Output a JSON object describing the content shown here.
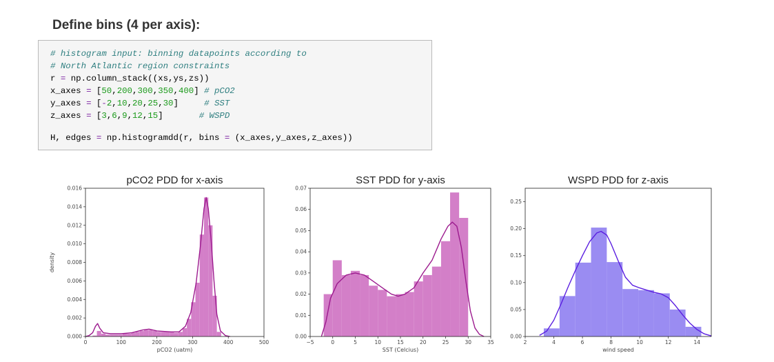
{
  "heading": "Define bins (4 per axis):",
  "code": {
    "lines": [
      [
        {
          "t": "# histogram input: binning datapoints according to",
          "c": "comment"
        }
      ],
      [
        {
          "t": "# North Atlantic region constraints",
          "c": "comment"
        }
      ],
      [
        {
          "t": "r "
        },
        {
          "t": "=",
          "c": "op"
        },
        {
          "t": " np.column_stack((xs,ys,zs))"
        }
      ],
      [
        {
          "t": "x_axes "
        },
        {
          "t": "=",
          "c": "op"
        },
        {
          "t": " ["
        },
        {
          "t": "50",
          "c": "num"
        },
        {
          "t": ","
        },
        {
          "t": "200",
          "c": "num"
        },
        {
          "t": ","
        },
        {
          "t": "300",
          "c": "num"
        },
        {
          "t": ","
        },
        {
          "t": "350",
          "c": "num"
        },
        {
          "t": ","
        },
        {
          "t": "400",
          "c": "num"
        },
        {
          "t": "] "
        },
        {
          "t": "# pCO2",
          "c": "comment"
        }
      ],
      [
        {
          "t": "y_axes "
        },
        {
          "t": "=",
          "c": "op"
        },
        {
          "t": " ["
        },
        {
          "t": "-",
          "c": "op"
        },
        {
          "t": "2",
          "c": "num"
        },
        {
          "t": ","
        },
        {
          "t": "10",
          "c": "num"
        },
        {
          "t": ","
        },
        {
          "t": "20",
          "c": "num"
        },
        {
          "t": ","
        },
        {
          "t": "25",
          "c": "num"
        },
        {
          "t": ","
        },
        {
          "t": "30",
          "c": "num"
        },
        {
          "t": "]     "
        },
        {
          "t": "# SST",
          "c": "comment"
        }
      ],
      [
        {
          "t": "z_axes "
        },
        {
          "t": "=",
          "c": "op"
        },
        {
          "t": " ["
        },
        {
          "t": "3",
          "c": "num"
        },
        {
          "t": ","
        },
        {
          "t": "6",
          "c": "num"
        },
        {
          "t": ","
        },
        {
          "t": "9",
          "c": "num"
        },
        {
          "t": ","
        },
        {
          "t": "12",
          "c": "num"
        },
        {
          "t": ","
        },
        {
          "t": "15",
          "c": "num"
        },
        {
          "t": "]       "
        },
        {
          "t": "# WSPD",
          "c": "comment"
        }
      ],
      [],
      [
        {
          "t": "H, edges "
        },
        {
          "t": "=",
          "c": "op"
        },
        {
          "t": " np.histogramdd(r, bins "
        },
        {
          "t": "=",
          "c": "op"
        },
        {
          "t": " (x_axes,y_axes,z_axes))"
        }
      ]
    ]
  },
  "chart_data": [
    {
      "type": "bar",
      "title": "pCO2 PDD for x-axis",
      "xlabel": "pCO2 (uatm)",
      "ylabel": "density",
      "xlim": [
        0,
        500
      ],
      "ylim": [
        0,
        0.016
      ],
      "xticks": [
        "0",
        "100",
        "200",
        "300",
        "400",
        "500"
      ],
      "yticks": [
        "0.000",
        "0.002",
        "0.004",
        "0.006",
        "0.008",
        "0.010",
        "0.012",
        "0.014",
        "0.016"
      ],
      "color": "#d37fc8",
      "kde_color": "#9c1a8e",
      "bins": [
        {
          "x0": 20,
          "x1": 32,
          "v": 0.0001
        },
        {
          "x0": 32,
          "x1": 44,
          "v": 0.0006
        },
        {
          "x0": 44,
          "x1": 56,
          "v": 0.0003
        },
        {
          "x0": 56,
          "x1": 68,
          "v": 0.0002
        },
        {
          "x0": 68,
          "x1": 80,
          "v": 0.0002
        },
        {
          "x0": 80,
          "x1": 92,
          "v": 0.0002
        },
        {
          "x0": 92,
          "x1": 104,
          "v": 0.0002
        },
        {
          "x0": 104,
          "x1": 116,
          "v": 0.0003
        },
        {
          "x0": 116,
          "x1": 128,
          "v": 0.0003
        },
        {
          "x0": 128,
          "x1": 140,
          "v": 0.0004
        },
        {
          "x0": 140,
          "x1": 152,
          "v": 0.0005
        },
        {
          "x0": 152,
          "x1": 164,
          "v": 0.0006
        },
        {
          "x0": 164,
          "x1": 176,
          "v": 0.0007
        },
        {
          "x0": 176,
          "x1": 188,
          "v": 0.0007
        },
        {
          "x0": 188,
          "x1": 200,
          "v": 0.0006
        },
        {
          "x0": 200,
          "x1": 212,
          "v": 0.0005
        },
        {
          "x0": 212,
          "x1": 224,
          "v": 0.0005
        },
        {
          "x0": 224,
          "x1": 236,
          "v": 0.0005
        },
        {
          "x0": 236,
          "x1": 248,
          "v": 0.0005
        },
        {
          "x0": 248,
          "x1": 260,
          "v": 0.0004
        },
        {
          "x0": 260,
          "x1": 272,
          "v": 0.0005
        },
        {
          "x0": 272,
          "x1": 284,
          "v": 0.0009
        },
        {
          "x0": 284,
          "x1": 296,
          "v": 0.0019
        },
        {
          "x0": 296,
          "x1": 308,
          "v": 0.0037
        },
        {
          "x0": 308,
          "x1": 320,
          "v": 0.0058
        },
        {
          "x0": 320,
          "x1": 332,
          "v": 0.011
        },
        {
          "x0": 332,
          "x1": 344,
          "v": 0.015
        },
        {
          "x0": 344,
          "x1": 356,
          "v": 0.012
        },
        {
          "x0": 356,
          "x1": 368,
          "v": 0.0044
        },
        {
          "x0": 368,
          "x1": 380,
          "v": 0.0005
        }
      ],
      "kde": [
        [
          0,
          0
        ],
        [
          10,
          0.0001
        ],
        [
          20,
          0.0004
        ],
        [
          28,
          0.0011
        ],
        [
          34,
          0.0014
        ],
        [
          40,
          0.0009
        ],
        [
          50,
          0.0004
        ],
        [
          70,
          0.0003
        ],
        [
          100,
          0.0003
        ],
        [
          130,
          0.0004
        ],
        [
          160,
          0.0007
        ],
        [
          178,
          0.0008
        ],
        [
          200,
          0.0006
        ],
        [
          240,
          0.0005
        ],
        [
          262,
          0.0005
        ],
        [
          280,
          0.0011
        ],
        [
          295,
          0.0026
        ],
        [
          310,
          0.0058
        ],
        [
          322,
          0.0098
        ],
        [
          332,
          0.0138
        ],
        [
          338,
          0.015
        ],
        [
          344,
          0.0138
        ],
        [
          352,
          0.0104
        ],
        [
          360,
          0.006
        ],
        [
          368,
          0.0024
        ],
        [
          378,
          0.0006
        ],
        [
          392,
          0.0001
        ],
        [
          405,
          0
        ]
      ]
    },
    {
      "type": "bar",
      "title": "SST PDD for y-axis",
      "xlabel": "SST (Celcius)",
      "ylabel": "",
      "xlim": [
        -5,
        35
      ],
      "ylim": [
        0,
        0.07
      ],
      "xticks": [
        "−5",
        "0",
        "5",
        "10",
        "15",
        "20",
        "25",
        "30",
        "35"
      ],
      "yticks": [
        "0.00",
        "0.01",
        "0.02",
        "0.03",
        "0.04",
        "0.05",
        "0.06",
        "0.07"
      ],
      "color": "#d37fc8",
      "kde_color": "#9c1a8e",
      "bins": [
        {
          "x0": -2,
          "x1": 0,
          "v": 0.02
        },
        {
          "x0": 0,
          "x1": 2,
          "v": 0.036
        },
        {
          "x0": 2,
          "x1": 4,
          "v": 0.029
        },
        {
          "x0": 4,
          "x1": 6,
          "v": 0.031
        },
        {
          "x0": 6,
          "x1": 8,
          "v": 0.029
        },
        {
          "x0": 8,
          "x1": 10,
          "v": 0.024
        },
        {
          "x0": 10,
          "x1": 12,
          "v": 0.022
        },
        {
          "x0": 12,
          "x1": 14,
          "v": 0.019
        },
        {
          "x0": 14,
          "x1": 16,
          "v": 0.02
        },
        {
          "x0": 16,
          "x1": 18,
          "v": 0.021
        },
        {
          "x0": 18,
          "x1": 20,
          "v": 0.026
        },
        {
          "x0": 20,
          "x1": 22,
          "v": 0.029
        },
        {
          "x0": 22,
          "x1": 24,
          "v": 0.033
        },
        {
          "x0": 24,
          "x1": 26,
          "v": 0.045
        },
        {
          "x0": 26,
          "x1": 28,
          "v": 0.068
        },
        {
          "x0": 28,
          "x1": 30,
          "v": 0.056
        }
      ],
      "kde": [
        [
          -2.5,
          0
        ],
        [
          -1.5,
          0.007
        ],
        [
          -0.5,
          0.018
        ],
        [
          1,
          0.025
        ],
        [
          3,
          0.029
        ],
        [
          5,
          0.03
        ],
        [
          7,
          0.029
        ],
        [
          9,
          0.026
        ],
        [
          11,
          0.023
        ],
        [
          13,
          0.02
        ],
        [
          14.5,
          0.019
        ],
        [
          16,
          0.02
        ],
        [
          18,
          0.023
        ],
        [
          20,
          0.03
        ],
        [
          22,
          0.036
        ],
        [
          24,
          0.046
        ],
        [
          25.5,
          0.052
        ],
        [
          26.5,
          0.054
        ],
        [
          27.5,
          0.052
        ],
        [
          28.5,
          0.042
        ],
        [
          29.5,
          0.026
        ],
        [
          30.5,
          0.012
        ],
        [
          31.5,
          0.004
        ],
        [
          32.5,
          0.001
        ],
        [
          33.5,
          0
        ]
      ]
    },
    {
      "type": "bar",
      "title": "WSPD PDD for z-axis",
      "xlabel": "wind speed",
      "ylabel": "",
      "xlim": [
        2,
        15
      ],
      "ylim": [
        0,
        0.275
      ],
      "xticks": [
        "2",
        "4",
        "6",
        "8",
        "10",
        "12",
        "14"
      ],
      "xtick_values": [
        2,
        4,
        6,
        8,
        10,
        12,
        14
      ],
      "yticks": [
        "0.00",
        "0.05",
        "0.10",
        "0.15",
        "0.20",
        "0.25"
      ],
      "ytick_values": [
        0,
        0.05,
        0.1,
        0.15,
        0.2,
        0.25
      ],
      "color": "#9a8cf2",
      "kde_color": "#5a1ee0",
      "bins": [
        {
          "x0": 3.3,
          "x1": 4.4,
          "v": 0.015
        },
        {
          "x0": 4.4,
          "x1": 5.5,
          "v": 0.075
        },
        {
          "x0": 5.5,
          "x1": 6.6,
          "v": 0.137
        },
        {
          "x0": 6.6,
          "x1": 7.7,
          "v": 0.202
        },
        {
          "x0": 7.7,
          "x1": 8.8,
          "v": 0.138
        },
        {
          "x0": 8.8,
          "x1": 9.9,
          "v": 0.088
        },
        {
          "x0": 9.9,
          "x1": 11.0,
          "v": 0.086
        },
        {
          "x0": 11.0,
          "x1": 12.1,
          "v": 0.08
        },
        {
          "x0": 12.1,
          "x1": 13.2,
          "v": 0.05
        },
        {
          "x0": 13.2,
          "x1": 14.3,
          "v": 0.018
        }
      ],
      "kde": [
        [
          3.0,
          0.002
        ],
        [
          3.5,
          0.01
        ],
        [
          4.0,
          0.03
        ],
        [
          4.5,
          0.06
        ],
        [
          5.0,
          0.092
        ],
        [
          5.5,
          0.122
        ],
        [
          6.0,
          0.15
        ],
        [
          6.5,
          0.176
        ],
        [
          7.0,
          0.192
        ],
        [
          7.3,
          0.195
        ],
        [
          7.7,
          0.188
        ],
        [
          8.0,
          0.172
        ],
        [
          8.5,
          0.14
        ],
        [
          9.0,
          0.11
        ],
        [
          9.5,
          0.095
        ],
        [
          10.0,
          0.09
        ],
        [
          10.5,
          0.086
        ],
        [
          11.0,
          0.082
        ],
        [
          11.5,
          0.079
        ],
        [
          12.0,
          0.072
        ],
        [
          12.5,
          0.057
        ],
        [
          13.0,
          0.04
        ],
        [
          13.5,
          0.025
        ],
        [
          14.0,
          0.013
        ],
        [
          14.5,
          0.005
        ],
        [
          15.0,
          0.001
        ]
      ]
    }
  ]
}
